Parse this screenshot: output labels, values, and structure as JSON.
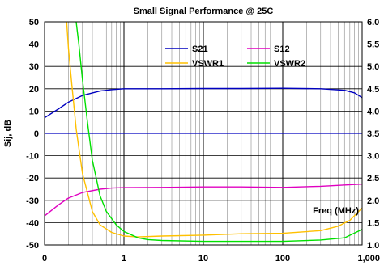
{
  "chart_data": {
    "type": "line",
    "title": "Small Signal Performance @ 25C",
    "xlabel": "Freq (MHz)",
    "ylabel": "Sij, dB",
    "x_scale": "log",
    "xlim": [
      0.1,
      1000
    ],
    "ylim": [
      -50,
      50
    ],
    "y2lim": [
      1.0,
      6.0
    ],
    "grid": true,
    "legend_placement": "top-right",
    "x_ticks": [
      {
        "value": 0.1,
        "label": "0"
      },
      {
        "value": 1,
        "label": "1"
      },
      {
        "value": 10,
        "label": "10"
      },
      {
        "value": 100,
        "label": "100"
      },
      {
        "value": 1000,
        "label": "1,000"
      }
    ],
    "y_ticks": [
      {
        "value": 50,
        "label": "50"
      },
      {
        "value": 40,
        "label": "40"
      },
      {
        "value": 30,
        "label": "30"
      },
      {
        "value": 20,
        "label": "20"
      },
      {
        "value": 10,
        "label": "10"
      },
      {
        "value": 0,
        "label": "0"
      },
      {
        "value": -10,
        "label": "-10"
      },
      {
        "value": -20,
        "label": "-20"
      },
      {
        "value": -30,
        "label": "-30"
      },
      {
        "value": -40,
        "label": "-40"
      },
      {
        "value": -50,
        "label": "-50"
      }
    ],
    "y2_ticks": [
      {
        "value": 6.0,
        "label": "6.0"
      },
      {
        "value": 5.5,
        "label": "5.5"
      },
      {
        "value": 5.0,
        "label": "5.0"
      },
      {
        "value": 4.5,
        "label": "4.5"
      },
      {
        "value": 4.0,
        "label": "4.0"
      },
      {
        "value": 3.5,
        "label": "3.5"
      },
      {
        "value": 3.0,
        "label": "3.0"
      },
      {
        "value": 2.5,
        "label": "2.5"
      },
      {
        "value": 2.0,
        "label": "2.0"
      },
      {
        "value": 1.5,
        "label": "1.5"
      },
      {
        "value": 1.0,
        "label": "1.0"
      }
    ],
    "series": [
      {
        "name": "S21",
        "axis": "left",
        "color": "#0000c0",
        "x": [
          0.1,
          0.15,
          0.2,
          0.3,
          0.5,
          0.7,
          1,
          3,
          10,
          30,
          100,
          300,
          600,
          800,
          1000
        ],
        "y": [
          7,
          11,
          14,
          17,
          19,
          19.6,
          20,
          20,
          20.1,
          20.1,
          20.2,
          20,
          19.3,
          18.2,
          16
        ]
      },
      {
        "name": "S12",
        "axis": "left",
        "color": "#e000c0",
        "x": [
          0.1,
          0.15,
          0.2,
          0.3,
          0.5,
          0.7,
          1,
          3,
          10,
          30,
          100,
          300,
          1000
        ],
        "y": [
          -37,
          -32,
          -29,
          -26.5,
          -25,
          -24.5,
          -24.3,
          -24.2,
          -24,
          -24,
          -24.2,
          -23.7,
          -22.7
        ]
      },
      {
        "name": "VSWR1",
        "axis": "right",
        "color": "#ffc000",
        "x": [
          0.19,
          0.2,
          0.22,
          0.25,
          0.3,
          0.4,
          0.5,
          0.7,
          1,
          1.5,
          3,
          10,
          30,
          100,
          300,
          500,
          700,
          1000
        ],
        "y": [
          6.0,
          5.4,
          4.6,
          3.6,
          2.6,
          1.75,
          1.45,
          1.28,
          1.2,
          1.18,
          1.2,
          1.22,
          1.25,
          1.26,
          1.32,
          1.42,
          1.55,
          1.83
        ]
      },
      {
        "name": "VSWR2",
        "axis": "right",
        "color": "#00e000",
        "x": [
          0.25,
          0.27,
          0.3,
          0.35,
          0.4,
          0.5,
          0.6,
          0.8,
          1,
          1.5,
          2,
          3,
          10,
          30,
          100,
          300,
          600,
          1000
        ],
        "y": [
          6.0,
          5.5,
          4.7,
          3.7,
          2.9,
          2.1,
          1.75,
          1.45,
          1.3,
          1.16,
          1.12,
          1.1,
          1.08,
          1.08,
          1.08,
          1.11,
          1.16,
          1.35
        ]
      }
    ]
  }
}
